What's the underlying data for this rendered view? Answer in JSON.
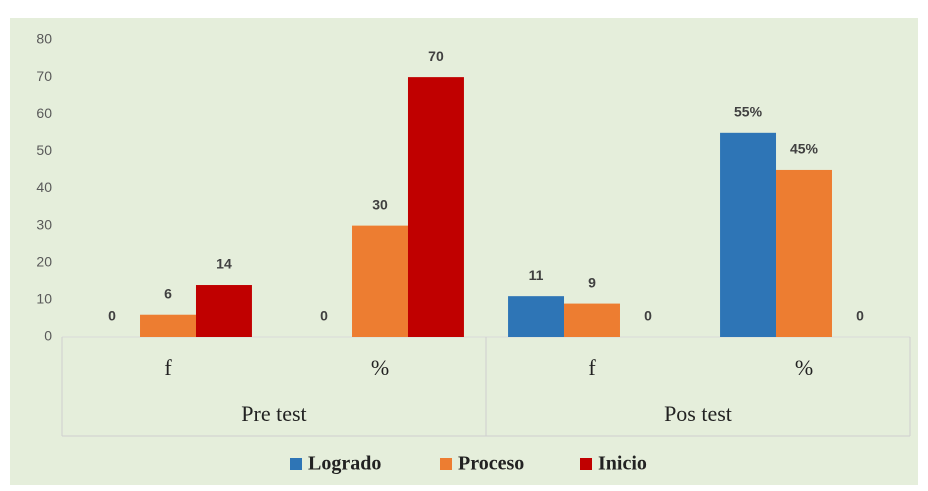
{
  "chart_data": {
    "type": "bar",
    "categories": [
      "f",
      "%",
      "f",
      "%"
    ],
    "groups": [
      "Pre test",
      "Pos test"
    ],
    "series": [
      {
        "name": "Logrado",
        "color": "#2e75b6",
        "values": [
          0,
          0,
          11,
          55
        ],
        "value_labels": [
          "0",
          "0",
          "11",
          "55%"
        ]
      },
      {
        "name": "Proceso",
        "color": "#ed7d31",
        "values": [
          6,
          30,
          9,
          45
        ],
        "value_labels": [
          "6",
          "30",
          "9",
          "45%"
        ]
      },
      {
        "name": "Inicio",
        "color": "#c00000",
        "values": [
          14,
          70,
          0,
          0
        ]
      }
    ],
    "ylim": [
      0,
      80
    ],
    "yticks": [
      0,
      10,
      20,
      30,
      40,
      50,
      60,
      70,
      80
    ],
    "legend": "bottom"
  }
}
